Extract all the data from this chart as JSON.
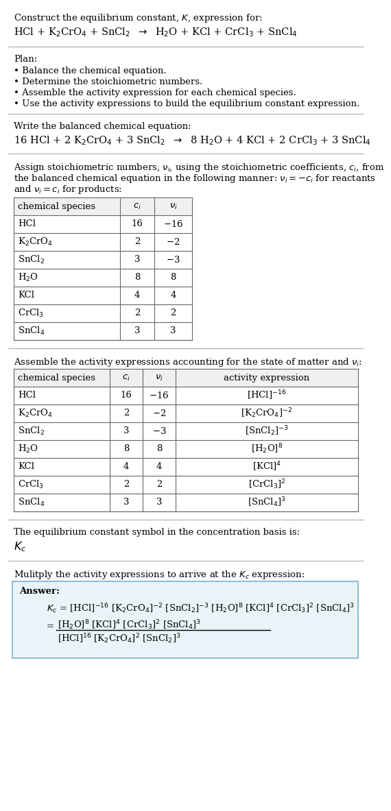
{
  "title_line1": "Construct the equilibrium constant, $K$, expression for:",
  "reaction_unbalanced": "HCl + K$_2$CrO$_4$ + SnCl$_2$  $\\rightarrow$  H$_2$O + KCl + CrCl$_3$ + SnCl$_4$",
  "plan_header": "Plan:",
  "plan_items": [
    "Balance the chemical equation.",
    "Determine the stoichiometric numbers.",
    "Assemble the activity expression for each chemical species.",
    "Use the activity expressions to build the equilibrium constant expression."
  ],
  "balanced_header": "Write the balanced chemical equation:",
  "reaction_balanced": "16 HCl + 2 K$_2$CrO$_4$ + 3 SnCl$_2$  $\\rightarrow$  8 H$_2$O + 4 KCl + 2 CrCl$_3$ + 3 SnCl$_4$",
  "stoich_intro_lines": [
    "Assign stoichiometric numbers, $\\nu_i$, using the stoichiometric coefficients, $c_i$, from",
    "the balanced chemical equation in the following manner: $\\nu_i = -c_i$ for reactants",
    "and $\\nu_i = c_i$ for products:"
  ],
  "table1_headers": [
    "chemical species",
    "$c_i$",
    "$\\nu_i$"
  ],
  "table1_rows": [
    [
      "HCl",
      "16",
      "$-$16"
    ],
    [
      "K$_2$CrO$_4$",
      "2",
      "$-$2"
    ],
    [
      "SnCl$_2$",
      "3",
      "$-$3"
    ],
    [
      "H$_2$O",
      "8",
      "8"
    ],
    [
      "KCl",
      "4",
      "4"
    ],
    [
      "CrCl$_3$",
      "2",
      "2"
    ],
    [
      "SnCl$_4$",
      "3",
      "3"
    ]
  ],
  "activity_intro": "Assemble the activity expressions accounting for the state of matter and $\\nu_i$:",
  "table2_headers": [
    "chemical species",
    "$c_i$",
    "$\\nu_i$",
    "activity expression"
  ],
  "table2_rows": [
    [
      "HCl",
      "16",
      "$-$16",
      "[HCl]$^{-16}$"
    ],
    [
      "K$_2$CrO$_4$",
      "2",
      "$-$2",
      "[K$_2$CrO$_4$]$^{-2}$"
    ],
    [
      "SnCl$_2$",
      "3",
      "$-$3",
      "[SnCl$_2$]$^{-3}$"
    ],
    [
      "H$_2$O",
      "8",
      "8",
      "[H$_2$O]$^8$"
    ],
    [
      "KCl",
      "4",
      "4",
      "[KCl]$^4$"
    ],
    [
      "CrCl$_3$",
      "2",
      "2",
      "[CrCl$_3$]$^2$"
    ],
    [
      "SnCl$_4$",
      "3",
      "3",
      "[SnCl$_4$]$^3$"
    ]
  ],
  "kc_intro": "The equilibrium constant symbol in the concentration basis is:",
  "kc_symbol": "$K_c$",
  "multiply_intro": "Mulitply the activity expressions to arrive at the $K_c$ expression:",
  "answer_label": "Answer:",
  "answer_line1": "$K_c$ = [HCl]$^{-16}$ [K$_2$CrO$_4$]$^{-2}$ [SnCl$_2$]$^{-3}$ [H$_2$O]$^8$ [KCl]$^4$ [CrCl$_3$]$^2$ [SnCl$_4$]$^3$",
  "answer_equals": "=",
  "answer_numerator": "[H$_2$O]$^8$ [KCl]$^4$ [CrCl$_3$]$^2$ [SnCl$_4$]$^3$",
  "answer_denominator": "[HCl]$^{16}$ [K$_2$CrO$_4$]$^2$ [SnCl$_2$]$^3$",
  "bg_color": "#ffffff",
  "answer_box_color": "#e8f4f8",
  "answer_box_border": "#7ab0cc",
  "text_color": "#000000",
  "line_color": "#aaaaaa",
  "table_line_color": "#666666",
  "font_size": 9.5
}
